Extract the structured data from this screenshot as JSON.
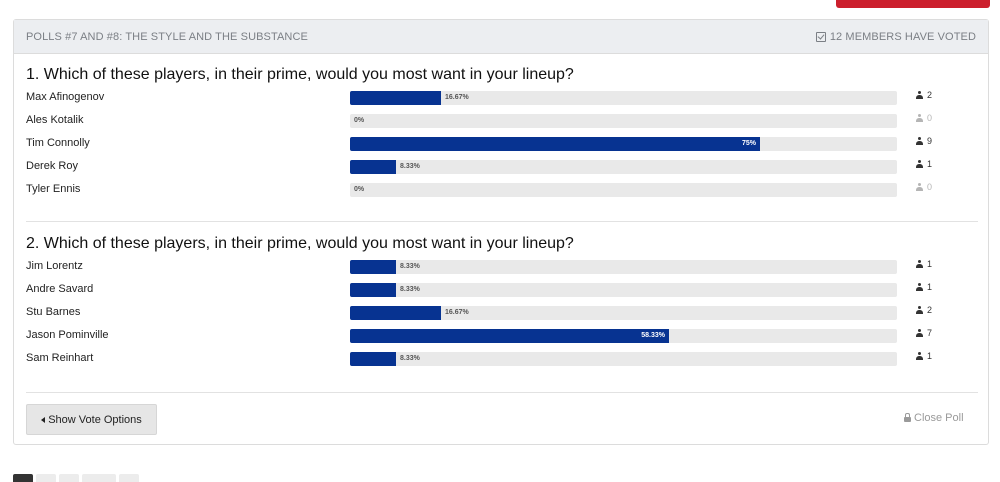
{
  "colors": {
    "bar": "#073391",
    "track": "#e9e9e9",
    "accent": "#cc1f2d"
  },
  "poll": {
    "header_title": "POLLS #7 AND #8: THE STYLE AND THE SUBSTANCE",
    "voted_text": "12 MEMBERS HAVE VOTED",
    "questions": [
      {
        "title": "1. Which of these players, in their prime, would you most want in your lineup?",
        "options": [
          {
            "label": "Max Afinogenov",
            "percent": 16.67,
            "percent_text": "16.67%",
            "votes": "2"
          },
          {
            "label": "Ales Kotalik",
            "percent": 0,
            "percent_text": "0%",
            "votes": "0"
          },
          {
            "label": "Tim Connolly",
            "percent": 75,
            "percent_text": "75%",
            "votes": "9"
          },
          {
            "label": "Derek Roy",
            "percent": 8.33,
            "percent_text": "8.33%",
            "votes": "1"
          },
          {
            "label": "Tyler Ennis",
            "percent": 0,
            "percent_text": "0%",
            "votes": "0"
          }
        ]
      },
      {
        "title": "2. Which of these players, in their prime, would you most want in your lineup?",
        "options": [
          {
            "label": "Jim Lorentz",
            "percent": 8.33,
            "percent_text": "8.33%",
            "votes": "1"
          },
          {
            "label": "Andre Savard",
            "percent": 8.33,
            "percent_text": "8.33%",
            "votes": "1"
          },
          {
            "label": "Stu Barnes",
            "percent": 16.67,
            "percent_text": "16.67%",
            "votes": "2"
          },
          {
            "label": "Jason Pominville",
            "percent": 58.33,
            "percent_text": "58.33%",
            "votes": "7"
          },
          {
            "label": "Sam Reinhart",
            "percent": 8.33,
            "percent_text": "8.33%",
            "votes": "1"
          }
        ]
      }
    ],
    "show_vote_options_label": "Show Vote Options",
    "close_poll_label": "Close Poll"
  }
}
